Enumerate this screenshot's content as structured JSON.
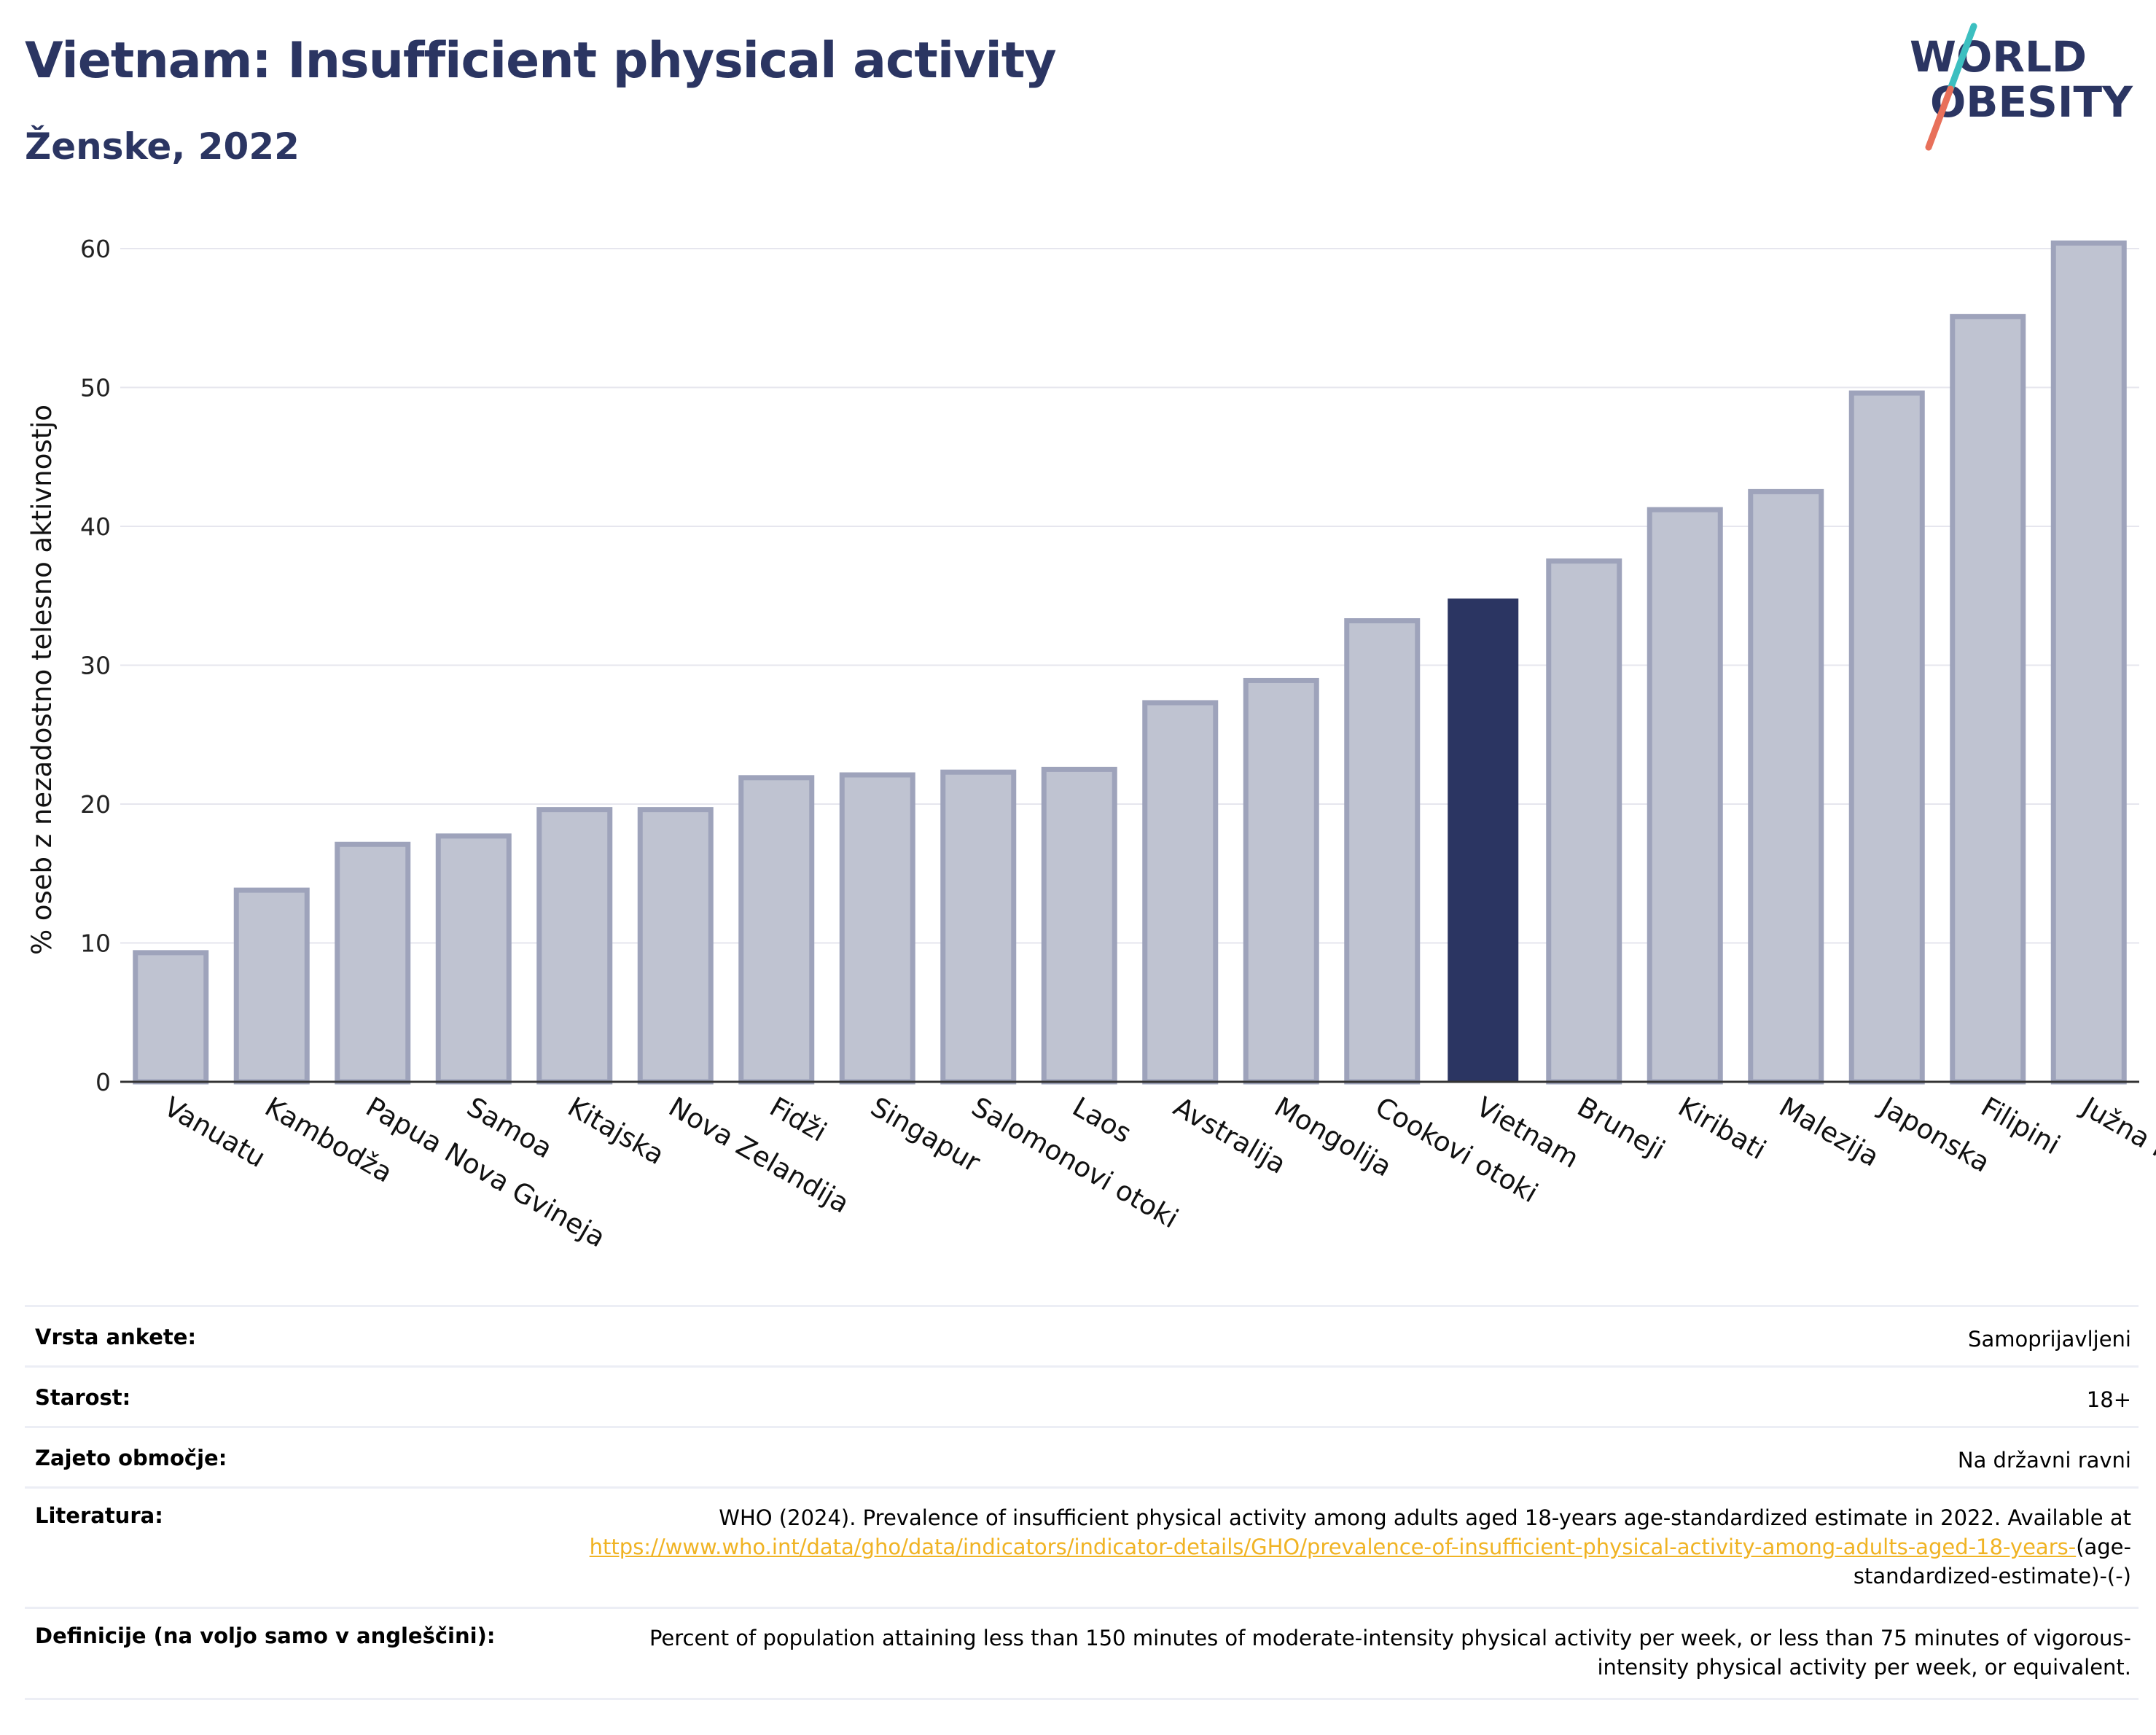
{
  "header": {
    "title": "Vietnam: Insufficient physical activity",
    "subtitle": "Ženske, 2022"
  },
  "logo": {
    "line1": "WORLD",
    "line2": "OBESITY"
  },
  "colors": {
    "highlight": "#2b3562",
    "bar_fill": "#bfc3d1",
    "bar_stroke": "#9ea3bb",
    "grid": "#e6e6ee",
    "logo_teal": "#3cbfc0",
    "logo_coral": "#e8705a",
    "link": "#f0b323"
  },
  "chart_data": {
    "type": "bar",
    "title": "Vietnam: Insufficient physical activity",
    "subtitle": "Ženske, 2022",
    "ylabel": "% oseb z nezadostno telesno aktivnostjo",
    "xlabel": "",
    "ylim": [
      0,
      62
    ],
    "yticks": [
      0,
      10,
      20,
      30,
      40,
      50,
      60
    ],
    "grid": true,
    "highlight": "Vietnam",
    "categories": [
      "Vanuatu",
      "Kambodža",
      "Papua Nova Gvineja",
      "Samoa",
      "Kitajska",
      "Nova Zelandija",
      "Fidži",
      "Singapur",
      "Salomonovi otoki",
      "Laos",
      "Avstralija",
      "Mongolija",
      "Cookovi otoki",
      "Vietnam",
      "Bruneji",
      "Kiribati",
      "Malezija",
      "Japonska",
      "Filipini",
      "Južna Koreja"
    ],
    "values": [
      9.3,
      13.8,
      17.1,
      17.7,
      19.6,
      19.6,
      21.9,
      22.1,
      22.3,
      22.5,
      27.3,
      28.9,
      33.2,
      34.8,
      37.5,
      41.2,
      42.5,
      49.6,
      55.1,
      60.4
    ]
  },
  "table": {
    "rows": [
      {
        "label": "Vrsta ankete:",
        "value": "Samoprijavljeni"
      },
      {
        "label": "Starost:",
        "value": "18+"
      },
      {
        "label": "Zajeto območje:",
        "value": "Na državni ravni"
      },
      {
        "label": "Literatura:",
        "value": "WHO (2024). Prevalence of insufficient physical activity among adults aged 18-years age-standardized estimate in 2022. Available at",
        "link": "https://www.who.int/data/gho/data/indicators/indicator-details/GHO/prevalence-of-insufficient-physical-activity-among-adults-aged-18-years-",
        "suffix": "(age-standardized-estimate)-(-)"
      },
      {
        "label": "Definicije (na voljo samo v angleščini):",
        "value": "Percent of population attaining less than 150 minutes of moderate-intensity physical activity per week, or less than 75 minutes of vigorous-intensity physical activity per week, or equivalent."
      }
    ]
  }
}
